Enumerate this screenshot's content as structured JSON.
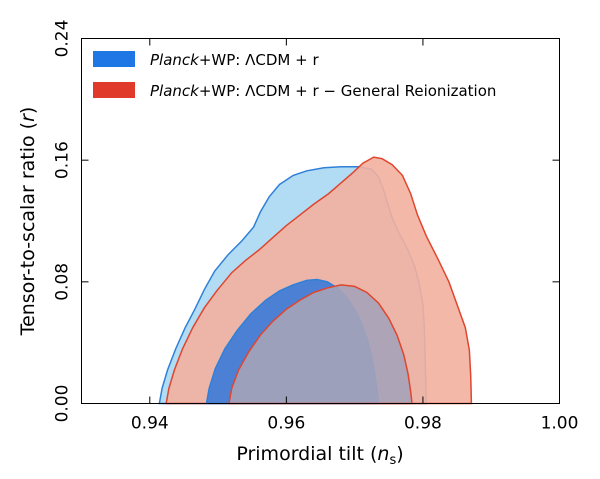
{
  "chart_data": {
    "type": "contour",
    "xlabel_main": "Primordial tilt (",
    "xlabel_sym": "n",
    "xlabel_sub": "s",
    "xlabel_end": ")",
    "ylabel_main": "Tensor-to-scalar ratio (",
    "ylabel_sym": "r",
    "ylabel_end": ")",
    "xlim": [
      0.93,
      1.0
    ],
    "ylim": [
      0.0,
      0.24
    ],
    "xticks": [
      0.94,
      0.96,
      0.98,
      1.0
    ],
    "xtick_labels": [
      "0.94",
      "0.96",
      "0.98",
      "1.00"
    ],
    "yticks": [
      0.0,
      0.08,
      0.16,
      0.24
    ],
    "ytick_labels": [
      "0.00",
      "0.08",
      "0.16",
      "0.24"
    ],
    "legend": [
      {
        "italic": "Planck",
        "text": "+WP: ΛCDM + r",
        "color": "#1f77e6"
      },
      {
        "italic": "Planck",
        "text": "+WP: ΛCDM + r − General Reionization",
        "color": "#e03a2a"
      }
    ],
    "series": [
      {
        "name": "Planck+WP: ΛCDM + r",
        "color": "#2f80d8",
        "contours": [
          {
            "level": "95%",
            "fill": "#a9d8f3",
            "points": [
              [
                0.9414,
                0.0
              ],
              [
                0.9418,
                0.01
              ],
              [
                0.9426,
                0.022
              ],
              [
                0.9438,
                0.036
              ],
              [
                0.9452,
                0.05
              ],
              [
                0.9466,
                0.062
              ],
              [
                0.948,
                0.075
              ],
              [
                0.9495,
                0.087
              ],
              [
                0.9515,
                0.098
              ],
              [
                0.9535,
                0.107
              ],
              [
                0.9552,
                0.116
              ],
              [
                0.9562,
                0.126
              ],
              [
                0.9575,
                0.136
              ],
              [
                0.959,
                0.144
              ],
              [
                0.961,
                0.15
              ],
              [
                0.963,
                0.153
              ],
              [
                0.9655,
                0.155
              ],
              [
                0.968,
                0.1557
              ],
              [
                0.9705,
                0.1557
              ],
              [
                0.9725,
                0.154
              ],
              [
                0.9735,
                0.149
              ],
              [
                0.9742,
                0.141
              ],
              [
                0.9748,
                0.132
              ],
              [
                0.9755,
                0.122
              ],
              [
                0.9765,
                0.112
              ],
              [
                0.9778,
                0.101
              ],
              [
                0.9788,
                0.09
              ],
              [
                0.9795,
                0.078
              ],
              [
                0.98,
                0.065
              ],
              [
                0.9802,
                0.05
              ],
              [
                0.9803,
                0.034
              ],
              [
                0.9804,
                0.018
              ],
              [
                0.9805,
                0.0
              ]
            ]
          },
          {
            "level": "68%",
            "fill": "#3a7ad8",
            "points": [
              [
                0.9483,
                0.0
              ],
              [
                0.9487,
                0.01
              ],
              [
                0.9496,
                0.023
              ],
              [
                0.951,
                0.036
              ],
              [
                0.9528,
                0.048
              ],
              [
                0.9548,
                0.059
              ],
              [
                0.957,
                0.068
              ],
              [
                0.959,
                0.074
              ],
              [
                0.961,
                0.078
              ],
              [
                0.963,
                0.081
              ],
              [
                0.9645,
                0.0815
              ],
              [
                0.966,
                0.08
              ],
              [
                0.9675,
                0.076
              ],
              [
                0.9688,
                0.07
              ],
              [
                0.97,
                0.062
              ],
              [
                0.971,
                0.053
              ],
              [
                0.9718,
                0.043
              ],
              [
                0.9725,
                0.031
              ],
              [
                0.973,
                0.018
              ],
              [
                0.9733,
                0.008
              ],
              [
                0.9735,
                0.0
              ]
            ]
          }
        ]
      },
      {
        "name": "Planck+WP: ΛCDM + r − General Reionization",
        "color": "#e0452e",
        "contours": [
          {
            "level": "95%",
            "fill": "#f3b0a0",
            "points": [
              [
                0.9424,
                0.0
              ],
              [
                0.9428,
                0.01
              ],
              [
                0.9436,
                0.022
              ],
              [
                0.9448,
                0.036
              ],
              [
                0.9463,
                0.05
              ],
              [
                0.948,
                0.063
              ],
              [
                0.9498,
                0.074
              ],
              [
                0.952,
                0.086
              ],
              [
                0.954,
                0.094
              ],
              [
                0.956,
                0.101
              ],
              [
                0.958,
                0.109
              ],
              [
                0.96,
                0.117
              ],
              [
                0.962,
                0.124
              ],
              [
                0.964,
                0.131
              ],
              [
                0.9662,
                0.138
              ],
              [
                0.968,
                0.145
              ],
              [
                0.9698,
                0.152
              ],
              [
                0.9712,
                0.158
              ],
              [
                0.9728,
                0.162
              ],
              [
                0.974,
                0.161
              ],
              [
                0.9755,
                0.157
              ],
              [
                0.977,
                0.15
              ],
              [
                0.9782,
                0.138
              ],
              [
                0.9792,
                0.124
              ],
              [
                0.9805,
                0.11
              ],
              [
                0.9822,
                0.095
              ],
              [
                0.9838,
                0.08
              ],
              [
                0.985,
                0.065
              ],
              [
                0.9862,
                0.05
              ],
              [
                0.9868,
                0.035
              ],
              [
                0.987,
                0.018
              ],
              [
                0.9871,
                0.0
              ]
            ]
          },
          {
            "level": "68%",
            "fill": "#a6a3b8",
            "points": [
              [
                0.9516,
                0.0
              ],
              [
                0.952,
                0.01
              ],
              [
                0.953,
                0.022
              ],
              [
                0.9545,
                0.034
              ],
              [
                0.9562,
                0.045
              ],
              [
                0.958,
                0.054
              ],
              [
                0.96,
                0.062
              ],
              [
                0.962,
                0.068
              ],
              [
                0.964,
                0.073
              ],
              [
                0.966,
                0.076
              ],
              [
                0.968,
                0.078
              ],
              [
                0.97,
                0.077
              ],
              [
                0.9718,
                0.073
              ],
              [
                0.9735,
                0.066
              ],
              [
                0.975,
                0.056
              ],
              [
                0.9762,
                0.045
              ],
              [
                0.9772,
                0.032
              ],
              [
                0.9778,
                0.02
              ],
              [
                0.9782,
                0.008
              ],
              [
                0.9784,
                0.0
              ]
            ]
          }
        ]
      }
    ]
  }
}
